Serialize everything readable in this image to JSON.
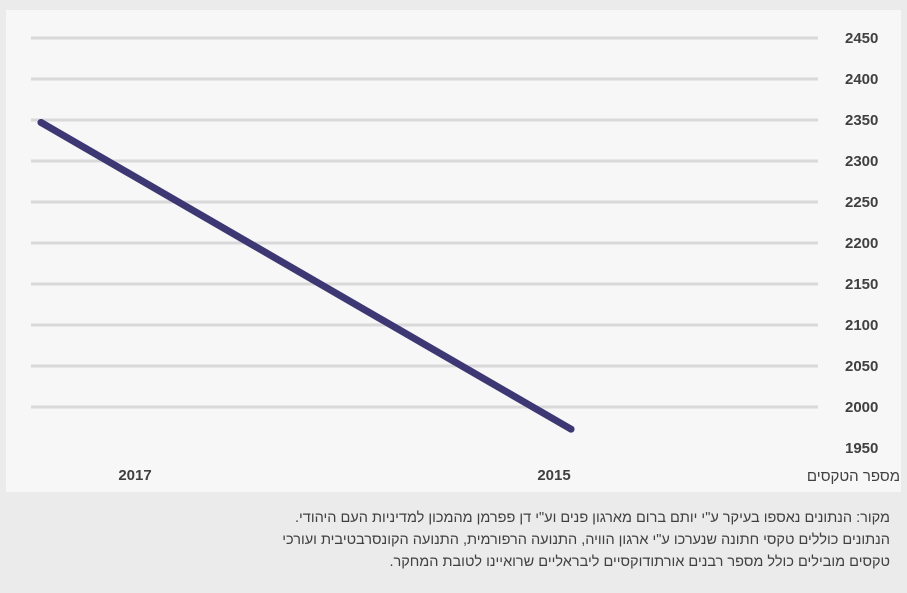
{
  "chart_data": {
    "type": "line",
    "x": [
      "2017",
      "2015"
    ],
    "series": [
      {
        "name": "מספר הטקסים",
        "values": [
          2347,
          1973
        ]
      }
    ],
    "ylim": [
      1950,
      2450
    ],
    "yticks": [
      1950,
      2000,
      2050,
      2100,
      2150,
      2200,
      2250,
      2300,
      2350,
      2400,
      2450
    ],
    "grid": true,
    "legend": "bottom-right",
    "line_color": "#3d3773",
    "grid_color": "#d9d9d9"
  },
  "source_note": {
    "lines": [
      "מקור: הנתונים נאספו בעיקר ע\"י יותם ברום מארגון פנים וע\"י דן פפרמן מהמכון למדיניות העם היהודי.",
      "הנתונים כוללים טקסי חתונה שנערכו ע\"י ארגון הוויה, התנועה הרפורמית, התנועה הקונסרבטיבית ועורכי",
      "טקסים מובילים כולל מספר רבנים אורתודוקסיים ליבראליים שרואיינו לטובת המחקר."
    ]
  }
}
